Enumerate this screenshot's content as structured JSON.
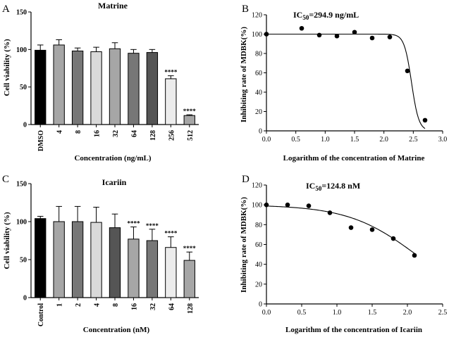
{
  "chart_data": [
    {
      "panel": "A",
      "type": "bar",
      "title": "Matrine",
      "xlabel": "Concentration (ng/mL)",
      "ylabel": "Cell viability (%)",
      "ylim": [
        0,
        150
      ],
      "yticks": [
        0,
        50,
        100,
        150
      ],
      "categories": [
        "DMSO",
        "4",
        "8",
        "16",
        "32",
        "64",
        "128",
        "256",
        "512"
      ],
      "values": [
        99,
        106,
        98,
        97,
        101,
        95,
        96,
        61,
        12
      ],
      "errors": [
        7,
        7,
        4,
        6,
        8,
        5,
        4,
        4,
        1
      ],
      "fills": [
        "#000000",
        "#a6a6a6",
        "#777777",
        "#d9d9d9",
        "#a6a6a6",
        "#777777",
        "#555555",
        "#ececec",
        "#a6a6a6"
      ],
      "significance": [
        "",
        "",
        "",
        "",
        "",
        "",
        "",
        "****",
        "****"
      ]
    },
    {
      "panel": "B",
      "type": "scatter",
      "annotation": "IC50=294.9 ng/mL",
      "annotation_main": "IC",
      "annotation_sub": "50",
      "annotation_rest": "=294.9 ng/mL",
      "xlabel": "Logarithm of the concentration of Matrine",
      "ylabel": "Inhibiting rate of MDBK(%)",
      "xlim": [
        0.0,
        3.0
      ],
      "ylim": [
        0,
        120
      ],
      "xticks": [
        "0.0",
        "0.5",
        "1.0",
        "1.5",
        "2.0",
        "2.5",
        "3.0"
      ],
      "yticks": [
        0,
        20,
        40,
        60,
        80,
        100,
        120
      ],
      "x": [
        0.0,
        0.6,
        0.9,
        1.2,
        1.5,
        1.8,
        2.1,
        2.4,
        2.7
      ],
      "y": [
        100,
        106,
        99,
        98,
        102,
        96,
        97,
        62,
        11
      ],
      "fit": {
        "top": 100,
        "bottom": 0,
        "logIC50": 2.47,
        "hill": 7
      }
    },
    {
      "panel": "C",
      "type": "bar",
      "title": "Icariin",
      "xlabel": "Concentration (nM)",
      "ylabel": "Cell viability (%)",
      "ylim": [
        0,
        150
      ],
      "yticks": [
        0,
        50,
        100,
        150
      ],
      "categories": [
        "Control",
        "1",
        "2",
        "4",
        "8",
        "16",
        "32",
        "64",
        "128"
      ],
      "values": [
        104,
        100,
        100,
        99,
        92,
        77,
        75,
        66,
        49
      ],
      "errors": [
        3,
        20,
        20,
        20,
        18,
        16,
        15,
        14,
        11
      ],
      "fills": [
        "#000000",
        "#a6a6a6",
        "#777777",
        "#d9d9d9",
        "#555555",
        "#a6a6a6",
        "#777777",
        "#ececec",
        "#a6a6a6"
      ],
      "significance": [
        "",
        "",
        "",
        "",
        "",
        "****",
        "****",
        "****",
        "****"
      ]
    },
    {
      "panel": "D",
      "type": "scatter",
      "annotation": "IC50=124.8 nM",
      "annotation_main": "IC",
      "annotation_sub": "50",
      "annotation_rest": "=124.8 nM",
      "xlabel": "Logarithm of the concentration of Icariin",
      "ylabel": "Inhibiting rate of MDBK(%)",
      "xlim": [
        0.0,
        2.5
      ],
      "ylim": [
        0,
        120
      ],
      "xticks": [
        "0.0",
        "0.5",
        "1.0",
        "1.5",
        "2.0",
        "2.5"
      ],
      "yticks": [
        0,
        20,
        40,
        60,
        80,
        100,
        120
      ],
      "x": [
        0.0,
        0.3,
        0.6,
        0.9,
        1.2,
        1.5,
        1.8,
        2.1
      ],
      "y": [
        100,
        100,
        99,
        92,
        77,
        75,
        66,
        49
      ],
      "fit": {
        "top": 100,
        "bottom": 0,
        "logIC50": 2.12,
        "hill": 0.9
      }
    }
  ]
}
